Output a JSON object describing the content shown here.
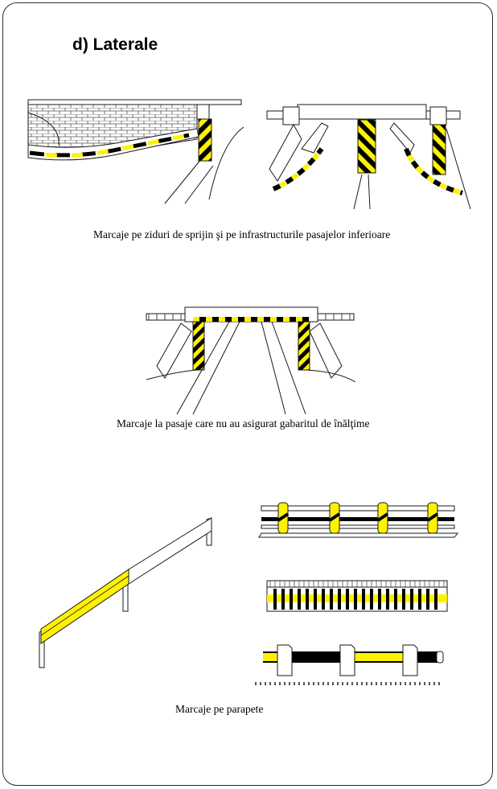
{
  "section_title": "d) Laterale",
  "captions": {
    "retaining_walls": "Marcaje pe ziduri de sprijin şi pe infrastructurile pasajelor inferioare",
    "low_clearance": "Marcaje la pasaje care nu au asigurat gabaritul de înălţime",
    "parapets": "Marcaje pe parapete"
  },
  "colors": {
    "yellow": "#fff200",
    "black": "#000000",
    "line": "#1a1a1a",
    "border": "#2b2b2b"
  }
}
